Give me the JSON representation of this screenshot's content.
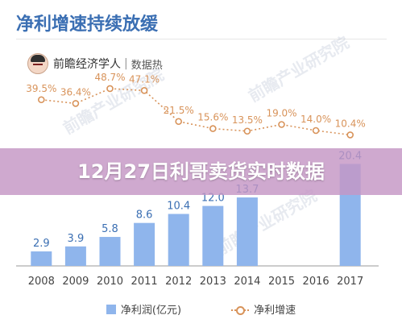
{
  "header": {
    "title": "净利增速持续放缓"
  },
  "brand": {
    "name": "前瞻经济学人",
    "divider": "|",
    "sub": "数据热"
  },
  "watermark": {
    "text": "前瞻产业研究院"
  },
  "overlay": {
    "text": "12月27日利哥卖货实时数据"
  },
  "colors": {
    "title": "#3b6fb3",
    "bar": "#8fb5ec",
    "line": "#d8935a",
    "overlay": "#c496c4"
  },
  "chart_data": {
    "type": "bar",
    "categories": [
      "2008",
      "2009",
      "2010",
      "2011",
      "2012",
      "2013",
      "2014",
      "2015",
      "2016",
      "2017"
    ],
    "series": [
      {
        "name": "净利润(亿元)",
        "type": "bar",
        "values": [
          2.9,
          3.9,
          5.8,
          8.6,
          10.4,
          12.0,
          13.7,
          null,
          null,
          20.4
        ]
      },
      {
        "name": "净利增速",
        "type": "line",
        "values": [
          39.5,
          36.4,
          48.7,
          47.1,
          21.5,
          15.6,
          13.5,
          19.0,
          14.0,
          10.4
        ]
      }
    ],
    "bar_labels": [
      "2.9",
      "3.9",
      "5.8",
      "8.6",
      "10.4",
      "12.0",
      "13.7",
      "",
      "",
      "20.4"
    ],
    "line_labels": [
      "39.5%",
      "36.4%",
      "48.7%",
      "47.1%",
      "21.5%",
      "15.6%",
      "13.5%",
      "19.0%",
      "14.0%",
      "10.4%"
    ],
    "legend": [
      "净利润(亿元)",
      "净利增速"
    ],
    "legend_position": "bottom",
    "grid": false
  }
}
